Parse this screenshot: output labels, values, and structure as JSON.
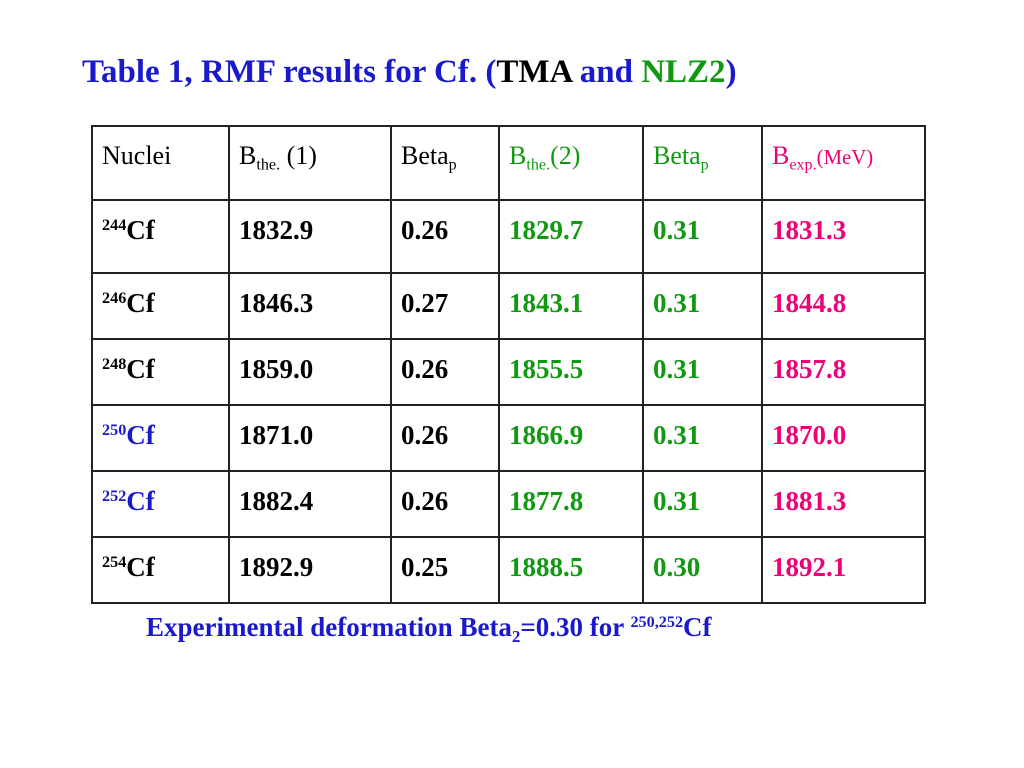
{
  "title": {
    "prefix": "Table 1,  RMF results for  Cf. (",
    "model_a": "TMA",
    "and": " and ",
    "model_b": "NLZ2",
    "suffix": ")"
  },
  "table": {
    "headers": {
      "nuclei": "Nuclei",
      "b_the_1_base": "B",
      "b_the_1_sub": "the.",
      "b_the_1_tail": " (1)",
      "beta_1_base": "Beta",
      "beta_1_sub": "p",
      "b_the_2_base": "B",
      "b_the_2_sub": "the.",
      "b_the_2_tail": "(2)",
      "beta_2_base": "Beta",
      "beta_2_sub": "p",
      "b_exp_base": "B",
      "b_exp_sub": "exp.",
      "b_exp_unit": "(MeV)"
    },
    "rows": [
      {
        "mass": "244",
        "element": "Cf",
        "b_the_1": "1832.9",
        "beta_1": "0.26",
        "b_the_2": "1829.7",
        "beta_2": "0.31",
        "b_exp": "1831.3"
      },
      {
        "mass": "246",
        "element": "Cf",
        "b_the_1": "1846.3",
        "beta_1": "0.27",
        "b_the_2": "1843.1",
        "beta_2": "0.31",
        "b_exp": "1844.8"
      },
      {
        "mass": "248",
        "element": "Cf",
        "b_the_1": "1859.0",
        "beta_1": "0.26",
        "b_the_2": "1855.5",
        "beta_2": "0.31",
        "b_exp": "1857.8"
      },
      {
        "mass": "250",
        "element": "Cf",
        "b_the_1": "1871.0",
        "beta_1": "0.26",
        "b_the_2": "1866.9",
        "beta_2": "0.31",
        "b_exp": "1870.0"
      },
      {
        "mass": "252",
        "element": "Cf",
        "b_the_1": "1882.4",
        "beta_1": "0.26",
        "b_the_2": "1877.8",
        "beta_2": "0.31",
        "b_exp": "1881.3"
      },
      {
        "mass": "254",
        "element": "Cf",
        "b_the_1": "1892.9",
        "beta_1": "0.25",
        "b_the_2": "1888.5",
        "beta_2": "0.30",
        "b_exp": "1892.1"
      }
    ]
  },
  "footnote": {
    "text": "Experimental deformation Beta",
    "sub": "2",
    "value": "=0.30 for ",
    "mass": "250,252",
    "element": "Cf"
  },
  "colors": {
    "blue": "#1a1acc",
    "black": "#000000",
    "green": "#119911",
    "pink": "#ee0077"
  }
}
